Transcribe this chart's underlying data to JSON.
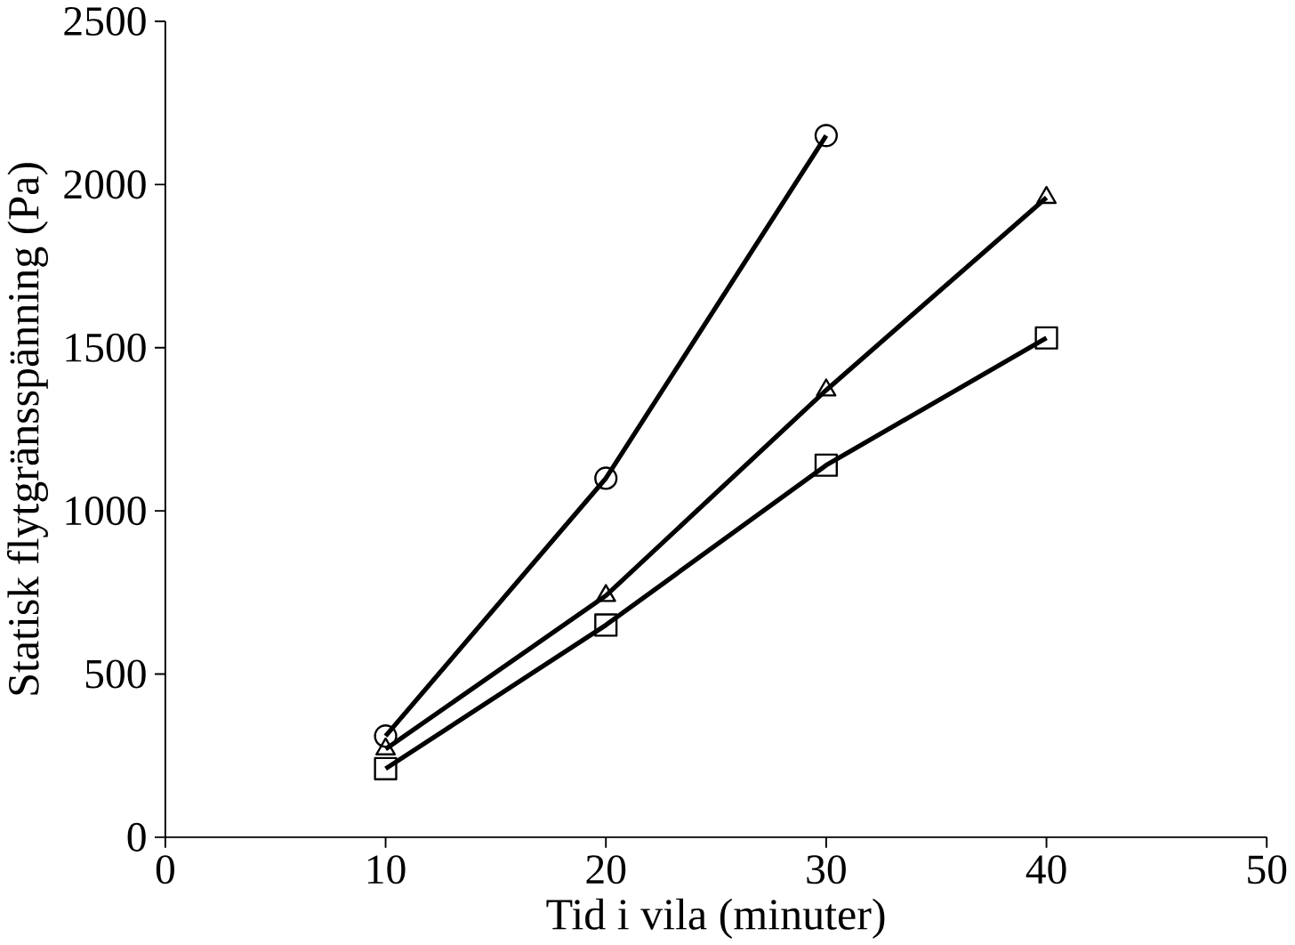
{
  "chart_data": {
    "type": "line",
    "xlabel": "Tid i vila (minuter)",
    "ylabel": "Statisk flytgränsspänning (Pa)",
    "xlim": [
      0,
      50
    ],
    "xticks": [
      0,
      10,
      20,
      30,
      40,
      50
    ],
    "ylim": [
      0,
      2500
    ],
    "yticks": [
      0,
      500,
      1000,
      1500,
      2000,
      2500
    ],
    "grid": false,
    "line_style": "solid",
    "series": [
      {
        "color": "#000000",
        "marker": "circle",
        "x": [
          10,
          20,
          30
        ],
        "values": [
          310,
          1100,
          2150
        ]
      },
      {
        "color": "#000000",
        "marker": "triangle",
        "x": [
          10,
          20,
          30,
          40
        ],
        "values": [
          270,
          740,
          1370,
          1960
        ]
      },
      {
        "color": "#000000",
        "marker": "square",
        "x": [
          10,
          20,
          30,
          40
        ],
        "values": [
          210,
          650,
          1140,
          1530
        ]
      }
    ]
  }
}
